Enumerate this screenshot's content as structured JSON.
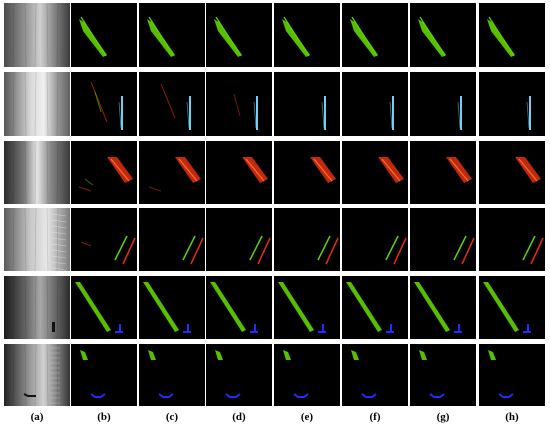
{
  "figure": {
    "panel_labels": [
      "(a)",
      "(b)",
      "(c)",
      "(d)",
      "(e)",
      "(f)",
      "(g)",
      "(h)"
    ],
    "colors": {
      "background": "#ffffff",
      "panel": "#000000",
      "crack_green": "#5fd400",
      "crack_red": "#e03010",
      "crack_cyan": "#6fd0f0",
      "crack_blue": "#1e2cff"
    }
  }
}
